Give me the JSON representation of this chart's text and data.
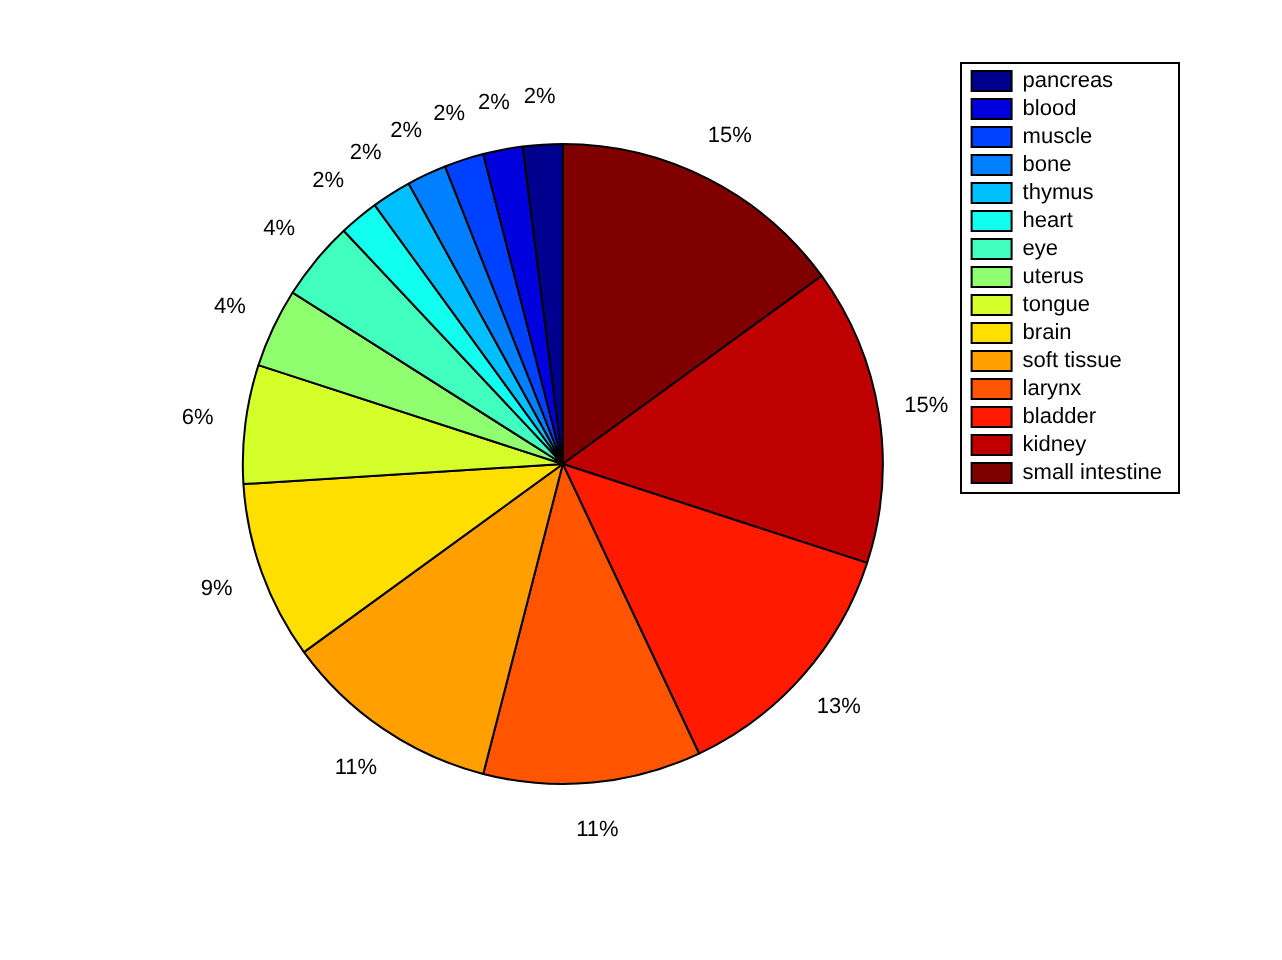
{
  "chart_data": {
    "type": "pie",
    "categories": [
      "small intestine",
      "kidney",
      "bladder",
      "larynx",
      "soft tissue",
      "brain",
      "tongue",
      "uterus",
      "eye",
      "heart",
      "thymus",
      "bone",
      "muscle",
      "blood",
      "pancreas"
    ],
    "values": [
      15,
      15,
      13,
      11,
      11,
      9,
      6,
      4,
      4,
      2,
      2,
      2,
      2,
      2,
      2
    ],
    "value_labels": [
      "15%",
      "15%",
      "13%",
      "11%",
      "11%",
      "9%",
      "6%",
      "4%",
      "4%",
      "2%",
      "2%",
      "2%",
      "2%",
      "2%",
      "2%"
    ],
    "colors": [
      "#800000",
      "#bf0000",
      "#ff1a00",
      "#ff5500",
      "#ff9f00",
      "#ffdf00",
      "#d4ff2b",
      "#8fff70",
      "#40ffbf",
      "#10ffef",
      "#00bfff",
      "#0080ff",
      "#0040ff",
      "#0000df",
      "#00008f"
    ],
    "legend": "top right"
  }
}
